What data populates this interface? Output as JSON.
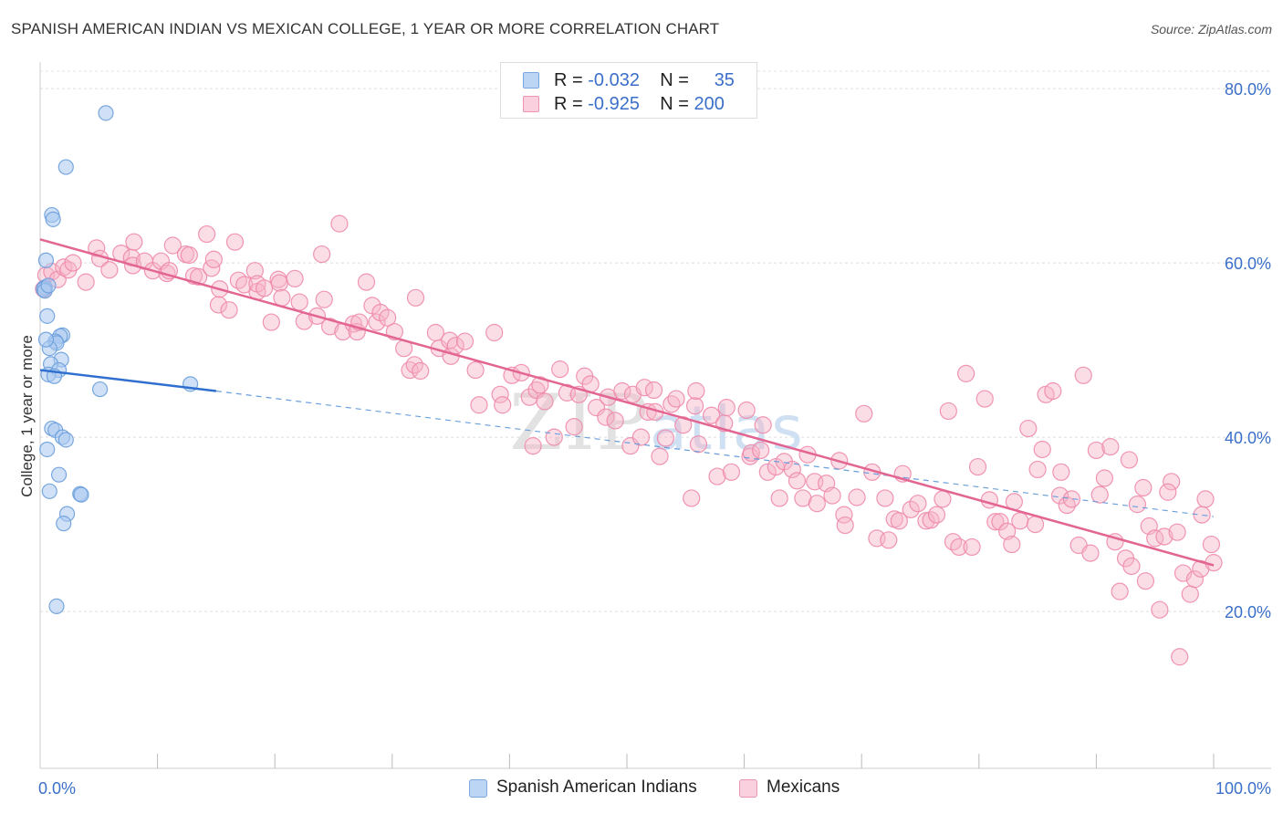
{
  "title": "SPANISH AMERICAN INDIAN VS MEXICAN COLLEGE, 1 YEAR OR MORE CORRELATION CHART",
  "source": "Source: ZipAtlas.com",
  "watermark": "ZIPatlas",
  "legend": {
    "rows": [
      {
        "r_label": "R =",
        "r_value": "-0.032",
        "n_label": "N =",
        "n_value": "35",
        "color": "#a9c8f0"
      },
      {
        "r_label": "R =",
        "r_value": "-0.925",
        "n_label": "N =",
        "n_value": "200",
        "color": "#f6b3c8"
      }
    ]
  },
  "bottom_legend": {
    "items": [
      {
        "label": "Spanish American Indians",
        "color": "#a9c8f0"
      },
      {
        "label": "Mexicans",
        "color": "#f6b3c8"
      }
    ]
  },
  "chart_data": {
    "type": "scatter",
    "title": "SPANISH AMERICAN INDIAN VS MEXICAN COLLEGE, 1 YEAR OR MORE CORRELATION CHART",
    "xlabel": "",
    "ylabel": "College, 1 year or more",
    "xlim": [
      0,
      100
    ],
    "ylim": [
      2,
      82
    ],
    "x_ticks": [
      "0.0%",
      "100.0%"
    ],
    "y_ticks": [
      {
        "value": 20,
        "label": "20.0%"
      },
      {
        "value": 40,
        "label": "40.0%"
      },
      {
        "value": 60,
        "label": "60.0%"
      },
      {
        "value": 80,
        "label": "80.0%"
      }
    ],
    "grid": true,
    "legend_position": "top-center",
    "series": [
      {
        "name": "Spanish American Indians",
        "color": "#a9c8f0",
        "stroke": "#6a9fdc",
        "trend_color": "#2f6fd0",
        "trend": {
          "x0": 0,
          "y0": 47.7,
          "x1": 15,
          "y1": 45.3,
          "dash_to_x": 100,
          "dash_to_y": 30.9
        },
        "points": [
          [
            5.6,
            77.2
          ],
          [
            2.2,
            71.0
          ],
          [
            1.0,
            65.5
          ],
          [
            1.1,
            65.0
          ],
          [
            0.5,
            60.3
          ],
          [
            0.4,
            57.2
          ],
          [
            0.3,
            57.0
          ],
          [
            0.6,
            53.9
          ],
          [
            1.9,
            51.7
          ],
          [
            1.7,
            51.6
          ],
          [
            1.3,
            51.0
          ],
          [
            1.4,
            50.8
          ],
          [
            0.8,
            50.2
          ],
          [
            0.5,
            51.2
          ],
          [
            1.8,
            48.9
          ],
          [
            0.9,
            48.4
          ],
          [
            1.6,
            47.7
          ],
          [
            0.7,
            47.2
          ],
          [
            1.2,
            47.0
          ],
          [
            5.1,
            45.5
          ],
          [
            12.8,
            46.1
          ],
          [
            1.0,
            41.0
          ],
          [
            1.3,
            40.8
          ],
          [
            1.9,
            40.0
          ],
          [
            2.2,
            39.7
          ],
          [
            0.6,
            38.6
          ],
          [
            1.6,
            35.7
          ],
          [
            0.8,
            33.8
          ],
          [
            3.4,
            33.5
          ],
          [
            3.5,
            33.4
          ],
          [
            2.3,
            31.2
          ],
          [
            2.0,
            30.1
          ],
          [
            1.4,
            20.6
          ],
          [
            0.4,
            56.8
          ],
          [
            0.7,
            57.4
          ]
        ]
      },
      {
        "name": "Mexicans",
        "color": "#f6b3c8",
        "stroke": "#ee8aab",
        "trend_color": "#e26592",
        "trend": {
          "x0": 0,
          "y0": 62.7,
          "x1": 100,
          "y1": 25.3
        },
        "points": [
          [
            0.3,
            57.0
          ],
          [
            0.5,
            58.6
          ],
          [
            1.0,
            59.0
          ],
          [
            1.5,
            58.1
          ],
          [
            2.0,
            59.5
          ],
          [
            2.4,
            59.2
          ],
          [
            2.8,
            60.0
          ],
          [
            3.9,
            57.8
          ],
          [
            4.8,
            61.7
          ],
          [
            5.1,
            60.5
          ],
          [
            5.9,
            59.2
          ],
          [
            6.9,
            61.1
          ],
          [
            7.8,
            60.6
          ],
          [
            7.9,
            59.7
          ],
          [
            8.0,
            62.4
          ],
          [
            8.9,
            60.2
          ],
          [
            9.6,
            59.1
          ],
          [
            10.3,
            60.2
          ],
          [
            10.8,
            58.8
          ],
          [
            11.0,
            59.1
          ],
          [
            11.3,
            62.0
          ],
          [
            12.4,
            61.0
          ],
          [
            12.7,
            60.9
          ],
          [
            13.1,
            58.5
          ],
          [
            13.5,
            58.4
          ],
          [
            14.2,
            63.3
          ],
          [
            14.6,
            59.4
          ],
          [
            14.8,
            60.4
          ],
          [
            15.2,
            55.2
          ],
          [
            15.3,
            57.0
          ],
          [
            16.1,
            54.6
          ],
          [
            16.6,
            62.4
          ],
          [
            16.9,
            58.0
          ],
          [
            17.4,
            57.5
          ],
          [
            18.3,
            59.1
          ],
          [
            18.5,
            56.7
          ],
          [
            18.5,
            57.6
          ],
          [
            19.1,
            57.1
          ],
          [
            19.7,
            53.2
          ],
          [
            20.3,
            58.1
          ],
          [
            20.4,
            57.7
          ],
          [
            20.6,
            56.0
          ],
          [
            21.7,
            58.2
          ],
          [
            22.1,
            55.5
          ],
          [
            22.5,
            53.3
          ],
          [
            23.6,
            53.9
          ],
          [
            24.0,
            61.0
          ],
          [
            24.2,
            55.8
          ],
          [
            24.7,
            52.7
          ],
          [
            25.5,
            64.5
          ],
          [
            25.8,
            52.1
          ],
          [
            26.7,
            53.0
          ],
          [
            27.0,
            52.1
          ],
          [
            27.2,
            53.2
          ],
          [
            27.8,
            57.8
          ],
          [
            28.3,
            55.1
          ],
          [
            28.7,
            53.2
          ],
          [
            29.0,
            54.3
          ],
          [
            29.6,
            53.7
          ],
          [
            30.2,
            52.1
          ],
          [
            31.0,
            50.2
          ],
          [
            31.5,
            47.7
          ],
          [
            31.9,
            48.3
          ],
          [
            32.0,
            56.0
          ],
          [
            32.4,
            47.6
          ],
          [
            33.7,
            52.0
          ],
          [
            34.0,
            50.2
          ],
          [
            34.9,
            51.1
          ],
          [
            35.0,
            49.3
          ],
          [
            35.4,
            50.5
          ],
          [
            36.2,
            51.0
          ],
          [
            37.1,
            47.7
          ],
          [
            37.4,
            43.7
          ],
          [
            38.7,
            52.0
          ],
          [
            39.2,
            44.9
          ],
          [
            39.4,
            43.7
          ],
          [
            40.2,
            47.1
          ],
          [
            41.0,
            47.4
          ],
          [
            41.7,
            44.6
          ],
          [
            42.0,
            39.0
          ],
          [
            42.3,
            45.4
          ],
          [
            42.6,
            46.0
          ],
          [
            43.0,
            44.1
          ],
          [
            43.8,
            40.0
          ],
          [
            44.3,
            47.8
          ],
          [
            44.9,
            45.1
          ],
          [
            45.5,
            41.2
          ],
          [
            45.9,
            44.9
          ],
          [
            46.4,
            47.0
          ],
          [
            46.9,
            46.1
          ],
          [
            47.4,
            43.4
          ],
          [
            48.2,
            42.3
          ],
          [
            48.4,
            44.6
          ],
          [
            49.0,
            41.9
          ],
          [
            49.6,
            45.3
          ],
          [
            50.3,
            39.0
          ],
          [
            50.5,
            44.9
          ],
          [
            51.2,
            40.0
          ],
          [
            51.5,
            45.7
          ],
          [
            51.8,
            42.9
          ],
          [
            52.3,
            45.4
          ],
          [
            52.4,
            42.9
          ],
          [
            52.8,
            37.8
          ],
          [
            53.3,
            39.9
          ],
          [
            53.8,
            43.8
          ],
          [
            54.2,
            44.4
          ],
          [
            54.8,
            41.4
          ],
          [
            55.5,
            33.0
          ],
          [
            55.8,
            43.6
          ],
          [
            55.9,
            45.3
          ],
          [
            56.1,
            39.2
          ],
          [
            57.2,
            42.5
          ],
          [
            57.7,
            35.5
          ],
          [
            58.3,
            41.6
          ],
          [
            58.5,
            43.4
          ],
          [
            58.9,
            36.0
          ],
          [
            60.2,
            43.1
          ],
          [
            60.5,
            37.8
          ],
          [
            60.6,
            38.2
          ],
          [
            61.4,
            38.5
          ],
          [
            61.6,
            41.4
          ],
          [
            62.0,
            36.0
          ],
          [
            62.7,
            36.6
          ],
          [
            63.0,
            33.0
          ],
          [
            63.4,
            37.2
          ],
          [
            64.1,
            36.3
          ],
          [
            64.5,
            35.0
          ],
          [
            65.0,
            33.0
          ],
          [
            65.4,
            38.0
          ],
          [
            66.0,
            34.9
          ],
          [
            66.2,
            32.4
          ],
          [
            67.0,
            34.7
          ],
          [
            67.5,
            33.3
          ],
          [
            68.1,
            37.3
          ],
          [
            68.5,
            31.1
          ],
          [
            68.6,
            29.9
          ],
          [
            69.6,
            33.1
          ],
          [
            70.2,
            42.7
          ],
          [
            70.9,
            36.0
          ],
          [
            71.3,
            28.4
          ],
          [
            72.0,
            33.0
          ],
          [
            72.3,
            28.2
          ],
          [
            72.8,
            30.6
          ],
          [
            73.2,
            30.4
          ],
          [
            73.5,
            35.8
          ],
          [
            74.2,
            31.7
          ],
          [
            74.8,
            32.4
          ],
          [
            75.5,
            30.4
          ],
          [
            75.9,
            30.5
          ],
          [
            76.4,
            31.1
          ],
          [
            76.9,
            32.9
          ],
          [
            77.4,
            43.0
          ],
          [
            77.8,
            28.0
          ],
          [
            78.3,
            27.4
          ],
          [
            78.9,
            47.3
          ],
          [
            79.4,
            27.4
          ],
          [
            79.9,
            36.6
          ],
          [
            80.5,
            44.4
          ],
          [
            80.9,
            32.8
          ],
          [
            81.4,
            30.3
          ],
          [
            81.8,
            30.3
          ],
          [
            82.4,
            29.2
          ],
          [
            82.8,
            27.7
          ],
          [
            83.0,
            32.6
          ],
          [
            83.5,
            30.4
          ],
          [
            84.2,
            41.0
          ],
          [
            84.8,
            30.0
          ],
          [
            85.4,
            38.6
          ],
          [
            85.7,
            44.9
          ],
          [
            86.3,
            45.3
          ],
          [
            86.9,
            33.3
          ],
          [
            87.0,
            36.0
          ],
          [
            87.5,
            32.2
          ],
          [
            87.9,
            32.9
          ],
          [
            88.5,
            27.6
          ],
          [
            88.9,
            47.1
          ],
          [
            89.5,
            26.7
          ],
          [
            90.0,
            38.5
          ],
          [
            90.7,
            35.3
          ],
          [
            91.2,
            38.9
          ],
          [
            91.6,
            28.0
          ],
          [
            92.0,
            22.3
          ],
          [
            92.5,
            26.1
          ],
          [
            92.8,
            37.4
          ],
          [
            93.5,
            32.3
          ],
          [
            94.0,
            34.2
          ],
          [
            94.5,
            29.8
          ],
          [
            95.0,
            28.4
          ],
          [
            95.4,
            20.2
          ],
          [
            95.8,
            28.6
          ],
          [
            96.4,
            34.9
          ],
          [
            96.9,
            29.1
          ],
          [
            97.4,
            24.4
          ],
          [
            98.0,
            22.0
          ],
          [
            98.4,
            23.7
          ],
          [
            98.9,
            24.9
          ],
          [
            99.3,
            32.9
          ],
          [
            99.8,
            27.7
          ],
          [
            100.0,
            25.6
          ],
          [
            97.1,
            14.8
          ],
          [
            99.0,
            31.1
          ],
          [
            96.1,
            33.7
          ],
          [
            94.2,
            23.5
          ],
          [
            93.0,
            25.2
          ],
          [
            90.3,
            33.4
          ],
          [
            85.0,
            36.3
          ]
        ]
      }
    ]
  }
}
